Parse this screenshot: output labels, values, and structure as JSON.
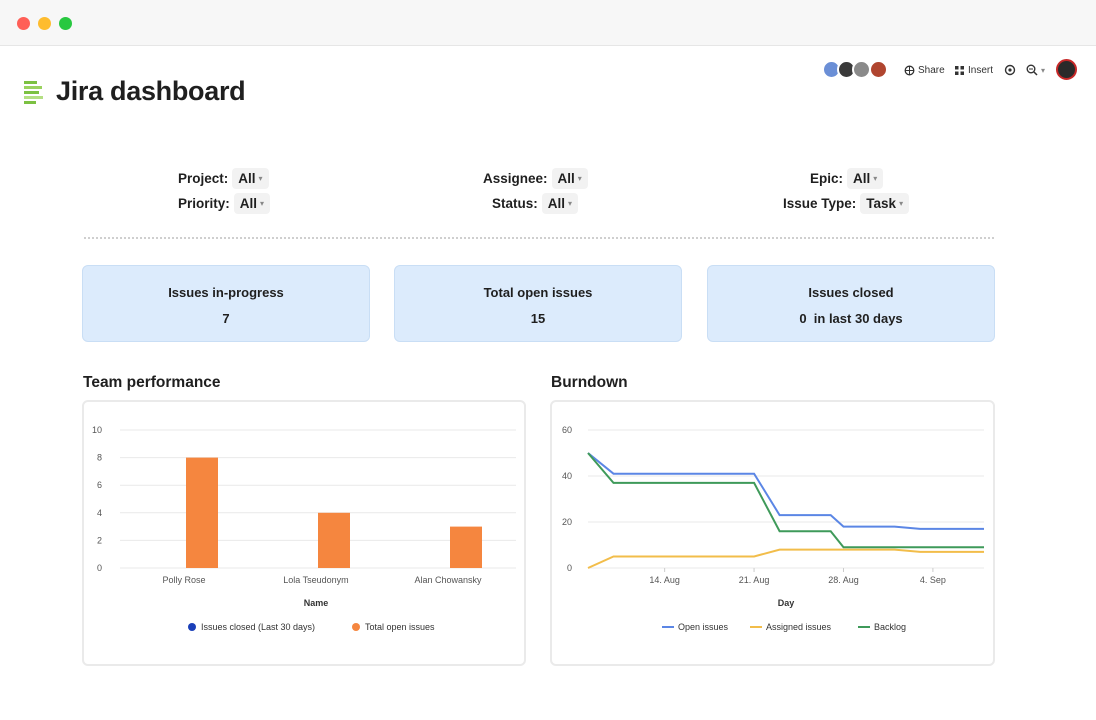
{
  "window": {
    "controls": [
      {
        "name": "close",
        "color": "#ff5f57"
      },
      {
        "name": "minimize",
        "color": "#febc2e"
      },
      {
        "name": "maximize",
        "color": "#28c840"
      }
    ]
  },
  "header": {
    "title": "Jira dashboard",
    "icon": "document-lines-icon",
    "toolbar": {
      "share_label": "Share",
      "insert_label": "Insert"
    },
    "collaborator_colors": [
      "#6b8fd6",
      "#3a3a3a",
      "#8a8a8a",
      "#b0452f"
    ]
  },
  "filters": [
    {
      "id": "project",
      "label": "Project:",
      "value": "All"
    },
    {
      "id": "priority",
      "label": "Priority:",
      "value": "All"
    },
    {
      "id": "assignee",
      "label": "Assignee:",
      "value": "All"
    },
    {
      "id": "status",
      "label": "Status:",
      "value": "All"
    },
    {
      "id": "epic",
      "label": "Epic:",
      "value": "All"
    },
    {
      "id": "issue_type",
      "label": "Issue Type:",
      "value": "Task"
    }
  ],
  "stats": [
    {
      "label": "Issues in-progress",
      "value": "7"
    },
    {
      "label": "Total open issues",
      "value": "15"
    },
    {
      "label": "Issues closed",
      "value": "0  in last 30 days"
    }
  ],
  "colors": {
    "card_bg": "#dcebfc",
    "issues_closed": "#1a3fb8",
    "total_open": "#f5863f",
    "open_issues_line": "#5b86e5",
    "assigned_issues_line": "#f2bd4a",
    "backlog_line": "#3f9a5a"
  },
  "team_performance": {
    "title": "Team performance",
    "chart_data": {
      "type": "bar",
      "categories": [
        "Polly Rose",
        "Lola Tseudonym",
        "Alan Chowansky"
      ],
      "series": [
        {
          "name": "Issues closed (Last 30 days)",
          "values": [
            0,
            0,
            0
          ]
        },
        {
          "name": "Total open issues",
          "values": [
            8,
            4,
            3
          ]
        }
      ],
      "xlabel": "Name",
      "ylabel": "",
      "ylim": [
        0,
        10
      ],
      "yticks": [
        0,
        2,
        4,
        6,
        8,
        10
      ],
      "grid": true,
      "legend": "bottom"
    }
  },
  "burndown": {
    "title": "Burndown",
    "chart_data": {
      "type": "line",
      "x": [
        "2023-08-08",
        "2023-08-10",
        "2023-08-21",
        "2023-08-23",
        "2023-08-27",
        "2023-08-28",
        "2023-09-01",
        "2023-09-03",
        "2023-09-08"
      ],
      "xticks": [
        "14. Aug",
        "21. Aug",
        "28. Aug",
        "4. Sep"
      ],
      "series": [
        {
          "name": "Open issues",
          "values": [
            50,
            41,
            41,
            23,
            23,
            18,
            18,
            17,
            17
          ]
        },
        {
          "name": "Assigned issues",
          "values": [
            0,
            5,
            5,
            8,
            8,
            8,
            8,
            7,
            7
          ]
        },
        {
          "name": "Backlog",
          "values": [
            50,
            37,
            37,
            16,
            16,
            9,
            9,
            9,
            9
          ]
        }
      ],
      "xlabel": "Day",
      "ylabel": "",
      "ylim": [
        0,
        60
      ],
      "yticks": [
        0,
        20,
        40,
        60
      ],
      "grid": true,
      "legend": "bottom"
    }
  }
}
